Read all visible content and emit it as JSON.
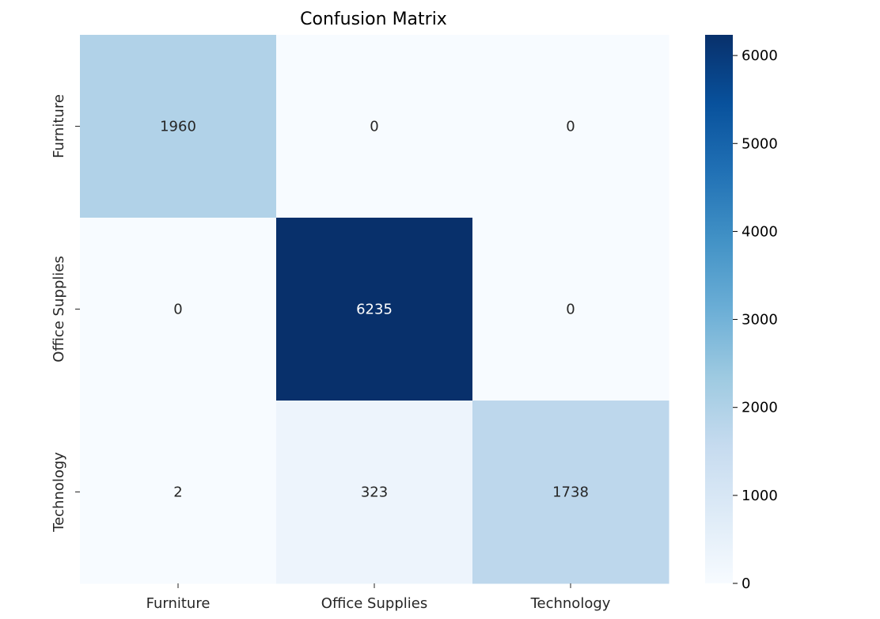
{
  "chart_data": {
    "type": "heatmap",
    "title": "Confusion Matrix",
    "xlabel": "",
    "ylabel": "",
    "x_categories": [
      "Furniture",
      "Office Supplies",
      "Technology"
    ],
    "y_categories": [
      "Furniture",
      "Office Supplies",
      "Technology"
    ],
    "values": [
      [
        1960,
        0,
        0
      ],
      [
        0,
        6235,
        0
      ],
      [
        2,
        323,
        1738
      ]
    ],
    "colormap": "Blues",
    "color_range": [
      0,
      6235
    ],
    "colorbar_ticks": [
      0,
      1000,
      2000,
      3000,
      4000,
      5000,
      6000
    ],
    "annotated": true,
    "grid": false
  }
}
